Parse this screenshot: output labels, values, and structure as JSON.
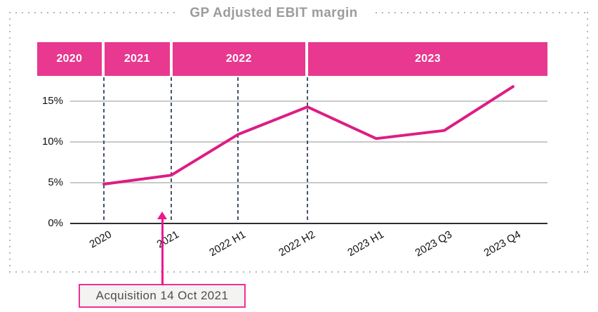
{
  "title": "GP Adjusted EBIT margin",
  "colors": {
    "band_pink": "#e8388f",
    "line_pink": "#dd1d84",
    "arrow_pink": "#ed188d",
    "annotation_border_pink": "#f12e97",
    "annotation_fill": "#f4f3f2",
    "dashed_guide": "#44546a",
    "gridline_gray": "#c9c9c9",
    "zero_axis": "#2e2e2e",
    "title_gray": "#9c9c9c",
    "frame_dot_gray": "#b6b6b6"
  },
  "chart_data": {
    "type": "line",
    "title": "GP Adjusted EBIT margin",
    "categories": [
      "2020",
      "2021",
      "2022 H1",
      "2022 H2",
      "2023 H1",
      "2023 Q3",
      "2023 Q4"
    ],
    "series": [
      {
        "name": "GP Adjusted EBIT margin",
        "values": [
          4.8,
          5.9,
          10.9,
          14.3,
          10.4,
          11.4,
          16.8
        ]
      }
    ],
    "unit": "%",
    "yticks": [
      0,
      5,
      10,
      15
    ],
    "ytick_labels": [
      "0%",
      "5%",
      "10%",
      "15%"
    ],
    "ylim": [
      0,
      18
    ],
    "grid": "horizontal",
    "legend": "none",
    "year_bands": [
      "2020",
      "2021",
      "2022",
      "2023"
    ],
    "dashed_guides_at": [
      "2020",
      "2021",
      "2022 H1",
      "2022 H2"
    ],
    "annotation": {
      "text": "Acquisition 14 Oct 2021",
      "points_to": "2021"
    }
  }
}
